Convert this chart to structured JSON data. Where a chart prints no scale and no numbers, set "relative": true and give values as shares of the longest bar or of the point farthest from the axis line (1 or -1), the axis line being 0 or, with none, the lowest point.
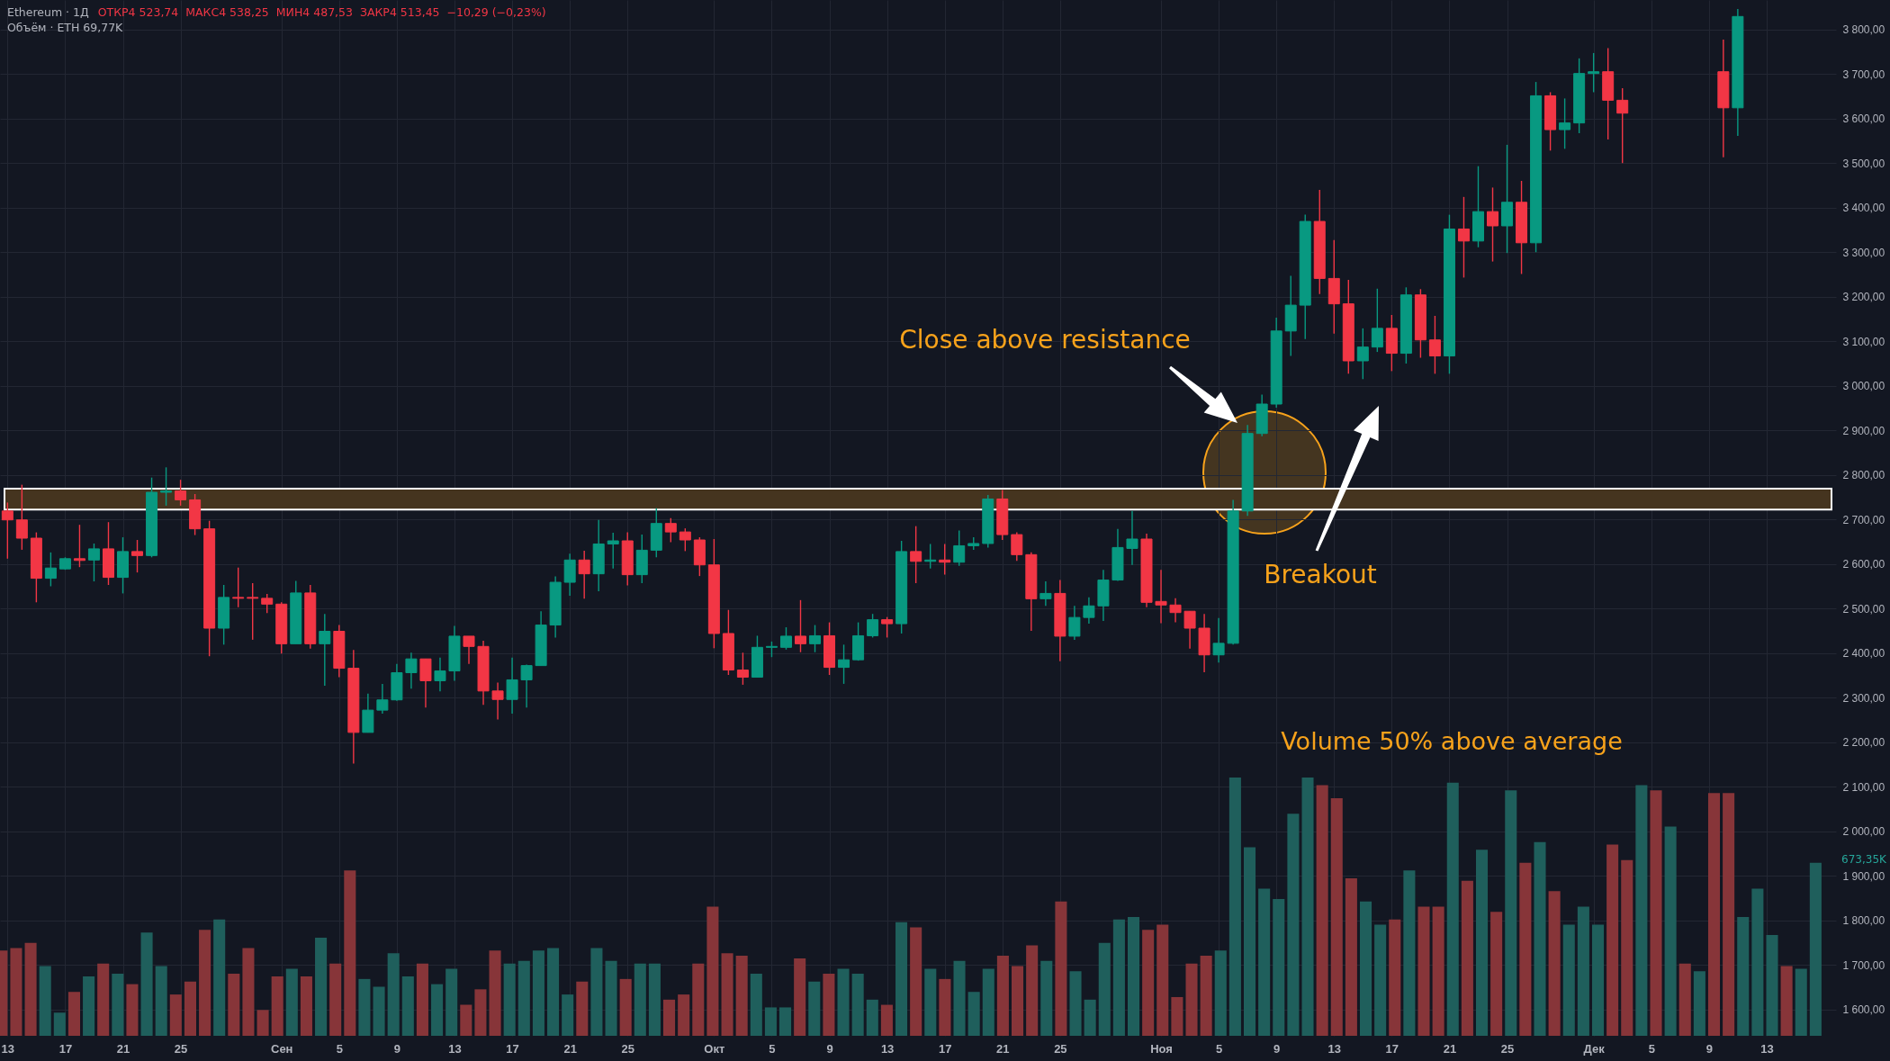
{
  "chart_data": [
    {
      "type": "candlestick",
      "title": "Ethereum · 1Д",
      "subtitle": "ОТКР4 523,74  МАКС4 538,25  МИН4 487,53  ЗАКР4 513,45  −10,29 (−0,23%)",
      "annotations": [
        "Close above resistance",
        "Breakout"
      ],
      "x": [
        "--08-13",
        "--08-14",
        "--08-15",
        "--08-16",
        "--08-17",
        "--08-18",
        "--08-19",
        "--08-20",
        "--08-21",
        "--08-22",
        "--08-23",
        "--08-24",
        "--08-25",
        "--08-26",
        "--08-27",
        "--08-28",
        "--08-29",
        "--08-30",
        "--08-31",
        "--09-01",
        "--09-02",
        "--09-03",
        "--09-04",
        "--09-05",
        "--09-06",
        "--09-07",
        "--09-08",
        "--09-09",
        "--09-10",
        "--09-11",
        "--09-12",
        "--09-13",
        "--09-14",
        "--09-15",
        "--09-16",
        "--09-17",
        "--09-18",
        "--09-19",
        "--09-20",
        "--09-21",
        "--09-22",
        "--09-23",
        "--09-24",
        "--09-25",
        "--09-26",
        "--09-27",
        "--09-28",
        "--09-29",
        "--09-30",
        "--10-01",
        "--10-02",
        "--10-03",
        "--10-04",
        "--10-05",
        "--10-06",
        "--10-07",
        "--10-08",
        "--10-09",
        "--10-10",
        "--10-11",
        "--10-12",
        "--10-13",
        "--10-14",
        "--10-15",
        "--10-16",
        "--10-17",
        "--10-18",
        "--10-19",
        "--10-20",
        "--10-21",
        "--10-22",
        "--10-23",
        "--10-24",
        "--10-25",
        "--10-26",
        "--10-27",
        "--10-28",
        "--10-29",
        "--10-30",
        "--10-31",
        "--11-01",
        "--11-02",
        "--11-03",
        "--11-04",
        "--11-05",
        "--11-06",
        "--11-07",
        "--11-08",
        "--11-09",
        "--11-10",
        "--11-11",
        "--11-12",
        "--11-13",
        "--11-14",
        "--11-15",
        "--11-16",
        "--11-17",
        "--11-18",
        "--11-19",
        "--11-20",
        "--11-21",
        "--11-22",
        "--11-23",
        "--11-24",
        "--11-25",
        "--11-26",
        "--11-27",
        "--11-28",
        "--11-29",
        "--11-30",
        "--12-01",
        "--12-02",
        "--12-03",
        "--12-10",
        "--12-11"
      ],
      "xlim": [
        "--08-12T19:00",
        "--12-17T12:00"
      ],
      "ohlc": [
        [
          2719,
          2738,
          2612,
          2699
        ],
        [
          2699,
          2778,
          2632,
          2658
        ],
        [
          2658,
          2671,
          2514,
          2568
        ],
        [
          2568,
          2626,
          2550,
          2591
        ],
        [
          2589,
          2615,
          2587,
          2612
        ],
        [
          2612,
          2688,
          2593,
          2608
        ],
        [
          2609,
          2646,
          2561,
          2634
        ],
        [
          2634,
          2694,
          2553,
          2570
        ],
        [
          2570,
          2660,
          2534,
          2628
        ],
        [
          2628,
          2654,
          2581,
          2619
        ],
        [
          2619,
          2794,
          2615,
          2761
        ],
        [
          2761,
          2817,
          2731,
          2764
        ],
        [
          2764,
          2789,
          2731,
          2744
        ],
        [
          2744,
          2757,
          2665,
          2679
        ],
        [
          2679,
          2697,
          2393,
          2456
        ],
        [
          2456,
          2553,
          2419,
          2525
        ],
        [
          2525,
          2592,
          2503,
          2523
        ],
        [
          2525,
          2557,
          2430,
          2523
        ],
        [
          2523,
          2533,
          2490,
          2510
        ],
        [
          2510,
          2514,
          2399,
          2421
        ],
        [
          2421,
          2562,
          2421,
          2535
        ],
        [
          2535,
          2553,
          2410,
          2421
        ],
        [
          2421,
          2488,
          2327,
          2449
        ],
        [
          2449,
          2463,
          2346,
          2366
        ],
        [
          2366,
          2407,
          2152,
          2222
        ],
        [
          2222,
          2309,
          2222,
          2272
        ],
        [
          2272,
          2331,
          2264,
          2295
        ],
        [
          2295,
          2376,
          2293,
          2356
        ],
        [
          2356,
          2401,
          2320,
          2387
        ],
        [
          2387,
          2387,
          2278,
          2338
        ],
        [
          2338,
          2390,
          2314,
          2360
        ],
        [
          2360,
          2461,
          2338,
          2438
        ],
        [
          2438,
          2438,
          2376,
          2415
        ],
        [
          2415,
          2428,
          2284,
          2315
        ],
        [
          2315,
          2334,
          2251,
          2296
        ],
        [
          2296,
          2390,
          2264,
          2340
        ],
        [
          2340,
          2374,
          2278,
          2372
        ],
        [
          2372,
          2494,
          2372,
          2463
        ],
        [
          2463,
          2572,
          2435,
          2559
        ],
        [
          2559,
          2623,
          2529,
          2609
        ],
        [
          2609,
          2630,
          2522,
          2578
        ],
        [
          2578,
          2699,
          2539,
          2645
        ],
        [
          2645,
          2670,
          2590,
          2652
        ],
        [
          2652,
          2671,
          2552,
          2576
        ],
        [
          2576,
          2666,
          2557,
          2631
        ],
        [
          2631,
          2725,
          2615,
          2691
        ],
        [
          2691,
          2703,
          2649,
          2672
        ],
        [
          2672,
          2680,
          2629,
          2654
        ],
        [
          2654,
          2660,
          2573,
          2598
        ],
        [
          2598,
          2656,
          2411,
          2444
        ],
        [
          2444,
          2497,
          2351,
          2362
        ],
        [
          2362,
          2401,
          2329,
          2346
        ],
        [
          2346,
          2439,
          2346,
          2413
        ],
        [
          2413,
          2426,
          2391,
          2415
        ],
        [
          2413,
          2458,
          2408,
          2438
        ],
        [
          2438,
          2519,
          2402,
          2421
        ],
        [
          2421,
          2463,
          2402,
          2439
        ],
        [
          2439,
          2469,
          2351,
          2368
        ],
        [
          2368,
          2419,
          2331,
          2385
        ],
        [
          2385,
          2469,
          2383,
          2439
        ],
        [
          2439,
          2488,
          2435,
          2475
        ],
        [
          2475,
          2481,
          2435,
          2466
        ],
        [
          2466,
          2652,
          2444,
          2628
        ],
        [
          2628,
          2685,
          2557,
          2606
        ],
        [
          2606,
          2645,
          2590,
          2609
        ],
        [
          2609,
          2645,
          2576,
          2604
        ],
        [
          2604,
          2675,
          2596,
          2641
        ],
        [
          2641,
          2660,
          2632,
          2646
        ],
        [
          2646,
          2755,
          2637,
          2746
        ],
        [
          2746,
          2766,
          2654,
          2666
        ],
        [
          2666,
          2671,
          2607,
          2621
        ],
        [
          2621,
          2626,
          2450,
          2522
        ],
        [
          2522,
          2561,
          2506,
          2534
        ],
        [
          2534,
          2564,
          2382,
          2438
        ],
        [
          2438,
          2506,
          2430,
          2480
        ],
        [
          2480,
          2525,
          2466,
          2506
        ],
        [
          2506,
          2587,
          2472,
          2564
        ],
        [
          2564,
          2679,
          2562,
          2637
        ],
        [
          2635,
          2719,
          2598,
          2656
        ],
        [
          2656,
          2668,
          2503,
          2514
        ],
        [
          2516,
          2587,
          2467,
          2508
        ],
        [
          2508,
          2523,
          2469,
          2491
        ],
        [
          2494,
          2494,
          2410,
          2456
        ],
        [
          2456,
          2488,
          2357,
          2396
        ],
        [
          2396,
          2479,
          2379,
          2422
        ],
        [
          2422,
          2744,
          2419,
          2719
        ],
        [
          2719,
          2912,
          2708,
          2893
        ],
        [
          2893,
          2980,
          2887,
          2959
        ],
        [
          2959,
          3153,
          2951,
          3123
        ],
        [
          3123,
          3247,
          3067,
          3181
        ],
        [
          3181,
          3384,
          3105,
          3369
        ],
        [
          3369,
          3440,
          3206,
          3241
        ],
        [
          3241,
          3327,
          3117,
          3184
        ],
        [
          3184,
          3238,
          3027,
          3056
        ],
        [
          3056,
          3129,
          3015,
          3087
        ],
        [
          3087,
          3218,
          3076,
          3129
        ],
        [
          3129,
          3159,
          3033,
          3073
        ],
        [
          3073,
          3221,
          3050,
          3204
        ],
        [
          3204,
          3217,
          3063,
          3103
        ],
        [
          3103,
          3157,
          3027,
          3067
        ],
        [
          3067,
          3384,
          3027,
          3352
        ],
        [
          3352,
          3424,
          3243,
          3325
        ],
        [
          3325,
          3493,
          3311,
          3391
        ],
        [
          3391,
          3445,
          3279,
          3359
        ],
        [
          3359,
          3541,
          3298,
          3412
        ],
        [
          3412,
          3460,
          3251,
          3321
        ],
        [
          3321,
          3682,
          3300,
          3651
        ],
        [
          3651,
          3659,
          3528,
          3575
        ],
        [
          3575,
          3645,
          3532,
          3590
        ],
        [
          3590,
          3735,
          3567,
          3701
        ],
        [
          3701,
          3747,
          3659,
          3705
        ],
        [
          3705,
          3758,
          3553,
          3641
        ],
        [
          3641,
          3668,
          3500,
          3612
        ],
        [
          3705,
          3777,
          3513,
          3624
        ],
        [
          3624,
          3846,
          3561,
          3829
        ]
      ],
      "colors": [
        "#f23645",
        "#f23645",
        "#f23645",
        "#089981",
        "#089981",
        "#f23645",
        "#089981",
        "#f23645",
        "#089981",
        "#f23645",
        "#089981",
        "#089981",
        "#f23645",
        "#f23645",
        "#f23645",
        "#089981",
        "#f23645",
        "#f23645",
        "#f23645",
        "#f23645",
        "#089981",
        "#f23645",
        "#089981",
        "#f23645",
        "#f23645",
        "#089981",
        "#089981",
        "#089981",
        "#089981",
        "#f23645",
        "#089981",
        "#089981",
        "#f23645",
        "#f23645",
        "#f23645",
        "#089981",
        "#089981",
        "#089981",
        "#089981",
        "#089981",
        "#f23645",
        "#089981",
        "#089981",
        "#f23645",
        "#089981",
        "#089981",
        "#f23645",
        "#f23645",
        "#f23645",
        "#f23645",
        "#f23645",
        "#f23645",
        "#089981",
        "#089981",
        "#089981",
        "#f23645",
        "#089981",
        "#f23645",
        "#089981",
        "#089981",
        "#089981",
        "#f23645",
        "#089981",
        "#f23645",
        "#089981",
        "#f23645",
        "#089981",
        "#089981",
        "#089981",
        "#f23645",
        "#f23645",
        "#f23645",
        "#089981",
        "#f23645",
        "#089981",
        "#089981",
        "#089981",
        "#089981",
        "#089981",
        "#f23645",
        "#f23645",
        "#f23645",
        "#f23645",
        "#f23645",
        "#089981",
        "#089981",
        "#089981",
        "#089981",
        "#089981",
        "#089981",
        "#089981",
        "#f23645",
        "#f23645",
        "#f23645",
        "#089981",
        "#089981",
        "#f23645",
        "#089981",
        "#f23645",
        "#f23645",
        "#089981",
        "#f23645",
        "#089981",
        "#f23645",
        "#089981",
        "#f23645",
        "#089981",
        "#f23645",
        "#089981",
        "#089981",
        "#089981",
        "#f23645",
        "#f23645",
        "#f23645",
        "#089981"
      ],
      "ylim": [
        1541,
        3866
      ],
      "yticks": [
        {
          "value": 1600,
          "label": "1 600,00"
        },
        {
          "value": 1700,
          "label": "1 700,00"
        },
        {
          "value": 1800,
          "label": "1 800,00"
        },
        {
          "value": 1900,
          "label": "1 900,00"
        },
        {
          "value": 2000,
          "label": "2 000,00"
        },
        {
          "value": 2100,
          "label": "2 100,00"
        },
        {
          "value": 2200,
          "label": "2 200,00"
        },
        {
          "value": 2300,
          "label": "2 300,00"
        },
        {
          "value": 2400,
          "label": "2 400,00"
        },
        {
          "value": 2500,
          "label": "2 500,00"
        },
        {
          "value": 2600,
          "label": "2 600,00"
        },
        {
          "value": 2700,
          "label": "2 700,00"
        },
        {
          "value": 2800,
          "label": "2 800,00"
        },
        {
          "value": 2900,
          "label": "2 900,00"
        },
        {
          "value": 3000,
          "label": "3 000,00"
        },
        {
          "value": 3100,
          "label": "3 100,00"
        },
        {
          "value": 3200,
          "label": "3 200,00"
        },
        {
          "value": 3300,
          "label": "3 300,00"
        },
        {
          "value": 3400,
          "label": "3 400,00"
        },
        {
          "value": 3500,
          "label": "3 500,00"
        },
        {
          "value": 3600,
          "label": "3 600,00"
        },
        {
          "value": 3700,
          "label": "3 700,00"
        },
        {
          "value": 3800,
          "label": "3 800,00"
        }
      ],
      "xticks": [
        {
          "value": "--08-13",
          "label": "13"
        },
        {
          "value": "--08-17",
          "label": "17"
        },
        {
          "value": "--08-21",
          "label": "21"
        },
        {
          "value": "--08-25",
          "label": "25"
        },
        {
          "value": "--09-01",
          "label": "Сен"
        },
        {
          "value": "--09-05",
          "label": "5"
        },
        {
          "value": "--09-09",
          "label": "9"
        },
        {
          "value": "--09-13",
          "label": "13"
        },
        {
          "value": "--09-17",
          "label": "17"
        },
        {
          "value": "--09-21",
          "label": "21"
        },
        {
          "value": "--09-25",
          "label": "25"
        },
        {
          "value": "--10-01",
          "label": "Окт"
        },
        {
          "value": "--10-05",
          "label": "5"
        },
        {
          "value": "--10-09",
          "label": "9"
        },
        {
          "value": "--10-13",
          "label": "13"
        },
        {
          "value": "--10-17",
          "label": "17"
        },
        {
          "value": "--10-21",
          "label": "21"
        },
        {
          "value": "--10-25",
          "label": "25"
        },
        {
          "value": "--11-01",
          "label": "Ноя"
        },
        {
          "value": "--11-05",
          "label": "5"
        },
        {
          "value": "--11-09",
          "label": "9"
        },
        {
          "value": "--11-13",
          "label": "13"
        },
        {
          "value": "--11-17",
          "label": "17"
        },
        {
          "value": "--11-21",
          "label": "21"
        },
        {
          "value": "--11-25",
          "label": "25"
        },
        {
          "value": "--12-01",
          "label": "Дек"
        },
        {
          "value": "--12-05",
          "label": "5"
        },
        {
          "value": "--12-09",
          "label": "9"
        },
        {
          "value": "--12-13",
          "label": "13"
        }
      ],
      "grid": true,
      "bands": [
        {
          "axis": "y",
          "from": 2722,
          "to": 2769,
          "color": "#45341f"
        }
      ]
    },
    {
      "type": "bar",
      "relative": true,
      "title": "Объём · ETH 69,77K",
      "annotations": [
        "Volume 50% above average",
        "673,35K"
      ],
      "categories": [
        null,
        null,
        null,
        null,
        null,
        null,
        null,
        null,
        null,
        null,
        null,
        null,
        null,
        null,
        null,
        null,
        null,
        null,
        null,
        null,
        null,
        null,
        null,
        null,
        null,
        null,
        null,
        null,
        null,
        null,
        null,
        null,
        null,
        null,
        null,
        null,
        null,
        null,
        null,
        null,
        null,
        null,
        null,
        null,
        null,
        null,
        null,
        null,
        null,
        null,
        null,
        null,
        null,
        null,
        null,
        null,
        null,
        null,
        null,
        null,
        null,
        null,
        null,
        null,
        null,
        null,
        null,
        null,
        null,
        null,
        null,
        null,
        null,
        null,
        null,
        null,
        null,
        null,
        null,
        null,
        null,
        null,
        null,
        null,
        null,
        null,
        null,
        null,
        null,
        null,
        null,
        null,
        null,
        null,
        null,
        null,
        null,
        null,
        null,
        null,
        null,
        null,
        null,
        null,
        null,
        null,
        null,
        null,
        null,
        null,
        null,
        null,
        null,
        null,
        null,
        null,
        null,
        null,
        null,
        null,
        null,
        null,
        null,
        null,
        null,
        null
      ],
      "values": [
        0.33,
        0.34,
        0.36,
        0.27,
        0.09,
        0.17,
        0.23,
        0.28,
        0.24,
        0.2,
        0.4,
        0.27,
        0.16,
        0.21,
        0.41,
        0.45,
        0.24,
        0.34,
        0.1,
        0.23,
        0.26,
        0.23,
        0.38,
        0.28,
        0.64,
        0.22,
        0.19,
        0.32,
        0.23,
        0.28,
        0.2,
        0.26,
        0.12,
        0.18,
        0.33,
        0.28,
        0.29,
        0.33,
        0.34,
        0.16,
        0.21,
        0.34,
        0.29,
        0.22,
        0.28,
        0.28,
        0.14,
        0.16,
        0.28,
        0.5,
        0.32,
        0.31,
        0.24,
        0.11,
        0.11,
        0.3,
        0.21,
        0.24,
        0.26,
        0.24,
        0.14,
        0.12,
        0.44,
        0.42,
        0.26,
        0.22,
        0.29,
        0.17,
        0.26,
        0.31,
        0.27,
        0.35,
        0.29,
        0.52,
        0.25,
        0.14,
        0.36,
        0.45,
        0.46,
        0.41,
        0.43,
        0.15,
        0.28,
        0.31,
        0.33,
        1,
        0.73,
        0.57,
        0.53,
        0.86,
        1,
        0.97,
        0.92,
        0.61,
        0.52,
        0.43,
        0.45,
        0.64,
        0.5,
        0.5,
        0.98,
        0.6,
        0.72,
        0.48,
        0.95,
        0.67,
        0.75,
        0.56,
        0.43,
        0.5,
        0.43,
        0.74,
        0.68,
        0.97,
        0.95,
        0.81,
        0.28,
        0.25,
        0.94,
        0.94,
        0.46,
        0.57,
        0.39,
        0.27,
        0.26,
        0.67
      ],
      "colors": [
        "#873539",
        "#873539",
        "#873539",
        "#1f5f5c",
        "#1f5f5c",
        "#873539",
        "#1f5f5c",
        "#873539",
        "#1f5f5c",
        "#873539",
        "#1f5f5c",
        "#1f5f5c",
        "#873539",
        "#873539",
        "#873539",
        "#1f5f5c",
        "#873539",
        "#873539",
        "#873539",
        "#873539",
        "#1f5f5c",
        "#873539",
        "#1f5f5c",
        "#873539",
        "#873539",
        "#1f5f5c",
        "#1f5f5c",
        "#1f5f5c",
        "#1f5f5c",
        "#873539",
        "#1f5f5c",
        "#1f5f5c",
        "#873539",
        "#873539",
        "#873539",
        "#1f5f5c",
        "#1f5f5c",
        "#1f5f5c",
        "#1f5f5c",
        "#1f5f5c",
        "#873539",
        "#1f5f5c",
        "#1f5f5c",
        "#873539",
        "#1f5f5c",
        "#1f5f5c",
        "#873539",
        "#873539",
        "#873539",
        "#873539",
        "#873539",
        "#873539",
        "#1f5f5c",
        "#1f5f5c",
        "#1f5f5c",
        "#873539",
        "#1f5f5c",
        "#873539",
        "#1f5f5c",
        "#1f5f5c",
        "#1f5f5c",
        "#873539",
        "#1f5f5c",
        "#873539",
        "#1f5f5c",
        "#873539",
        "#1f5f5c",
        "#1f5f5c",
        "#1f5f5c",
        "#873539",
        "#873539",
        "#873539",
        "#1f5f5c",
        "#873539",
        "#1f5f5c",
        "#1f5f5c",
        "#1f5f5c",
        "#1f5f5c",
        "#1f5f5c",
        "#873539",
        "#873539",
        "#873539",
        "#873539",
        "#873539",
        "#1f5f5c",
        "#1f5f5c",
        "#1f5f5c",
        "#1f5f5c",
        "#1f5f5c",
        "#1f5f5c",
        "#1f5f5c",
        "#873539",
        "#873539",
        "#873539",
        "#1f5f5c",
        "#1f5f5c",
        "#873539",
        "#1f5f5c",
        "#873539",
        "#873539",
        "#1f5f5c",
        "#873539",
        "#1f5f5c",
        "#873539",
        "#1f5f5c",
        "#873539",
        "#1f5f5c",
        "#873539",
        "#1f5f5c",
        "#1f5f5c",
        "#1f5f5c",
        "#873539",
        "#873539",
        "#1f5f5c",
        "#873539",
        "#1f5f5c",
        "#873539",
        "#1f5f5c",
        "#873539",
        "#873539",
        "#1f5f5c",
        "#1f5f5c",
        "#1f5f5c",
        "#873539",
        "#1f5f5c",
        "#1f5f5c"
      ]
    }
  ]
}
